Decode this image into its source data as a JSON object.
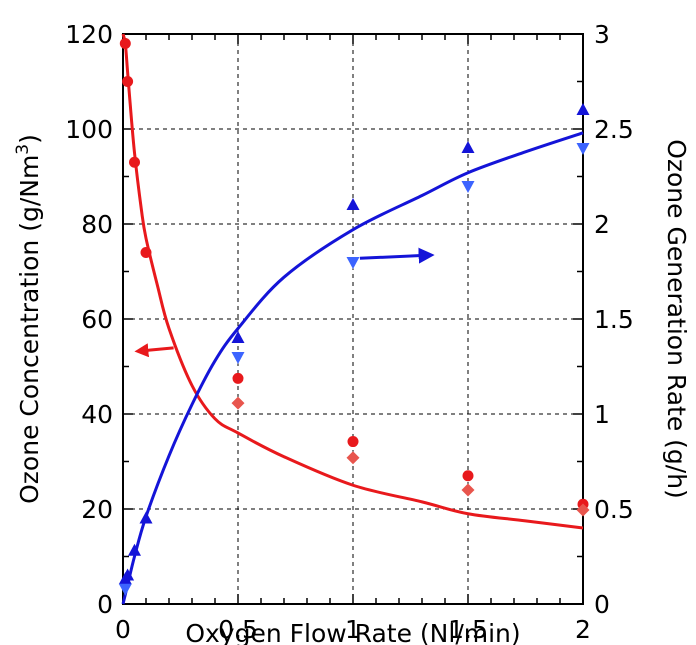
{
  "chart_data": {
    "type": "scatter",
    "title": "",
    "xlabel": "Oxygen Flow Rate (Nl/min)",
    "ylabel": "Ozone Concentration (g/Nm3)",
    "ylabel_base": "Ozone Concentration (g/Nm",
    "ylabel_sup": "3",
    "ylabel_end": ")",
    "y2label": "Ozone Generation Rate (g/h)",
    "xlim": [
      0,
      2
    ],
    "ylim": [
      0,
      120
    ],
    "y2lim": [
      0,
      3
    ],
    "xticks": [
      "0",
      "0.5",
      "1",
      "1.5",
      "2"
    ],
    "xtick_values": [
      0,
      0.5,
      1,
      1.5,
      2
    ],
    "yticks": [
      "0",
      "20",
      "40",
      "60",
      "80",
      "100",
      "120"
    ],
    "ytick_values": [
      0,
      20,
      40,
      60,
      80,
      100,
      120
    ],
    "y2ticks": [
      "0",
      "0.5",
      "1",
      "1.5",
      "2",
      "2.5",
      "3"
    ],
    "y2tick_values": [
      0,
      0.5,
      1,
      1.5,
      2,
      2.5,
      3
    ],
    "grid": true,
    "colors": {
      "concentration": "#e8191c",
      "concentration_light": "#e8554d",
      "generation": "#1414d8",
      "generation_light": "#3c64ff"
    },
    "series": [
      {
        "axis": "left",
        "marker": "circle",
        "color": "#e8191c",
        "x": [
          0.01,
          0.02,
          0.05,
          0.1,
          0.5,
          1.0,
          1.5,
          2.0
        ],
        "y": [
          118,
          110,
          93,
          74,
          47.5,
          34.2,
          27,
          21
        ]
      },
      {
        "axis": "left",
        "marker": "diamond",
        "color": "#e8554d",
        "x": [
          0.5,
          1.0,
          1.5,
          2.0
        ],
        "y": [
          42.3,
          30.8,
          24,
          19.8
        ]
      },
      {
        "axis": "right",
        "marker": "triangle-up",
        "color": "#1414d8",
        "x": [
          0.01,
          0.02,
          0.05,
          0.1,
          0.5,
          1.0,
          1.5,
          2.0
        ],
        "y": [
          0.13,
          0.15,
          0.28,
          0.45,
          1.4,
          2.1,
          2.4,
          2.6
        ]
      },
      {
        "axis": "right",
        "marker": "triangle-down",
        "color": "#3c64ff",
        "x": [
          0.01,
          0.5,
          1.0,
          1.5,
          2.0
        ],
        "y": [
          0.08,
          1.3,
          1.8,
          2.2,
          2.4
        ]
      }
    ],
    "fit_curves": [
      {
        "axis": "left",
        "color": "#e8191c",
        "x": [
          0.0,
          0.01,
          0.02,
          0.03,
          0.05,
          0.08,
          0.1,
          0.15,
          0.2,
          0.3,
          0.4,
          0.5,
          0.7,
          1.0,
          1.3,
          1.5,
          1.75,
          2.0
        ],
        "y": [
          120,
          118,
          112,
          106,
          95,
          83,
          77,
          67,
          58,
          46,
          39,
          36,
          31,
          25,
          21.5,
          19,
          17.5,
          16
        ]
      },
      {
        "axis": "right",
        "color": "#1414d8",
        "x": [
          0.0,
          0.02,
          0.05,
          0.1,
          0.2,
          0.3,
          0.4,
          0.5,
          0.7,
          1.0,
          1.3,
          1.5,
          1.75,
          2.0
        ],
        "y": [
          0.0,
          0.1,
          0.25,
          0.46,
          0.78,
          1.05,
          1.28,
          1.45,
          1.72,
          1.97,
          2.15,
          2.27,
          2.38,
          2.48
        ]
      }
    ],
    "annotations": [
      {
        "type": "arrow",
        "color": "#e8191c",
        "direction": "left",
        "points_to_axis": "left"
      },
      {
        "type": "arrow",
        "color": "#1414d8",
        "direction": "right",
        "points_to_axis": "right"
      }
    ]
  }
}
